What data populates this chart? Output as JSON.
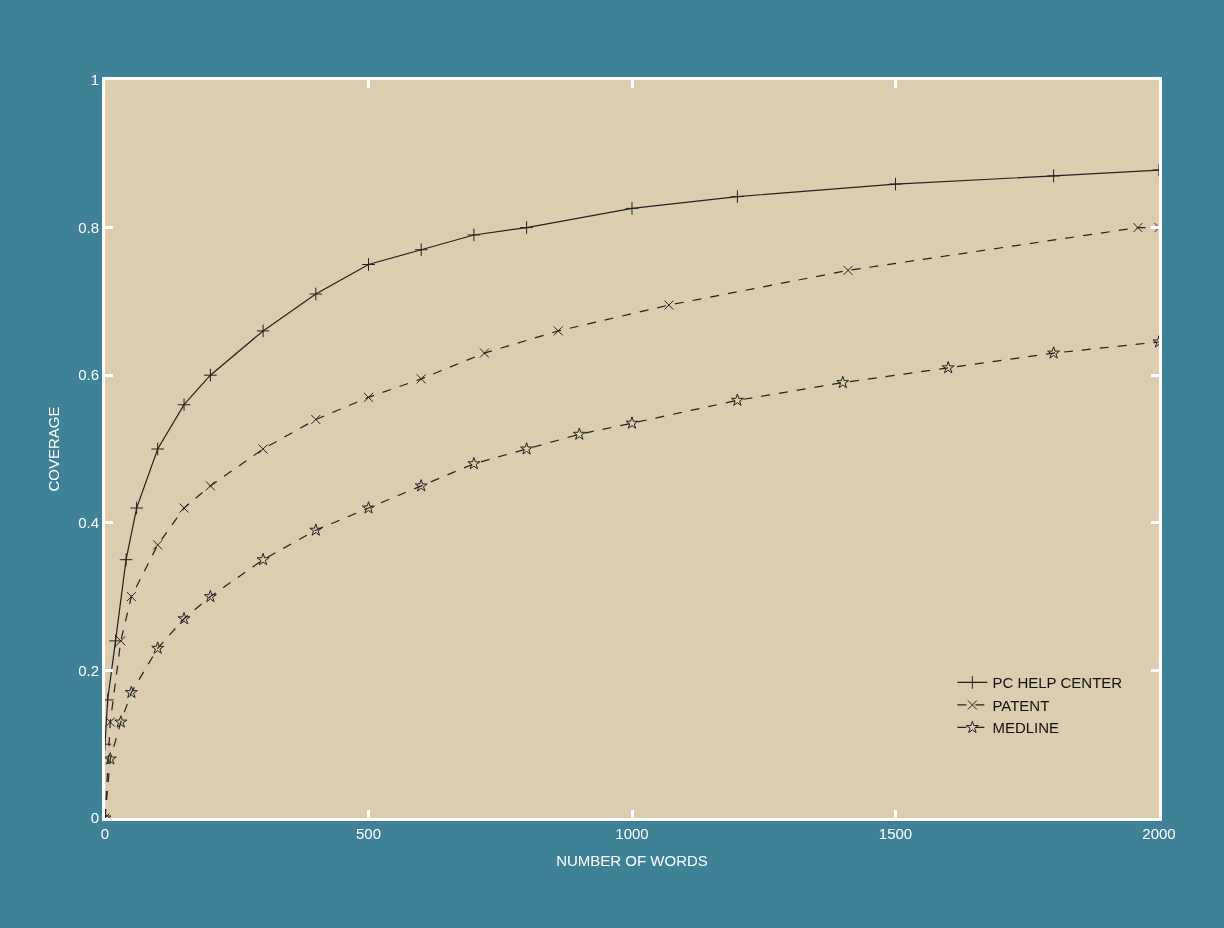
{
  "chart_data": {
    "type": "line",
    "xlabel": "NUMBER OF WORDS",
    "ylabel": "COVERAGE",
    "xlim": [
      0,
      2000
    ],
    "xticks": [
      0,
      500,
      1000,
      1500,
      2000
    ],
    "ylim": [
      0,
      1
    ],
    "yticks": [
      0,
      0.2,
      0.4,
      0.6,
      0.8,
      1
    ],
    "grid": false,
    "legend": "bottom right",
    "series": [
      {
        "name": "PC HELP CENTER",
        "color": "#222222",
        "line_style": "solid",
        "marker": "cross",
        "x": [
          0,
          5,
          20,
          40,
          60,
          100,
          150,
          200,
          300,
          400,
          500,
          600,
          700,
          800,
          1000,
          1200,
          1500,
          1800,
          2000
        ],
        "values": [
          0.1,
          0.16,
          0.24,
          0.35,
          0.42,
          0.5,
          0.56,
          0.6,
          0.66,
          0.71,
          0.75,
          0.77,
          0.79,
          0.8,
          0.826,
          0.842,
          0.859,
          0.87,
          0.878
        ]
      },
      {
        "name": "PATENT",
        "color": "#222222",
        "line_style": "dashed",
        "marker": "x",
        "x": [
          0,
          10,
          30,
          50,
          100,
          150,
          200,
          300,
          400,
          500,
          600,
          720,
          860,
          1070,
          1410,
          1960,
          2000
        ],
        "values": [
          0,
          0.13,
          0.24,
          0.3,
          0.37,
          0.42,
          0.45,
          0.5,
          0.54,
          0.57,
          0.595,
          0.63,
          0.66,
          0.695,
          0.742,
          0.8,
          0.8
        ]
      },
      {
        "name": "MEDLINE",
        "color": "#222222",
        "line_style": "dashed",
        "marker": "star",
        "x": [
          0,
          10,
          30,
          50,
          100,
          150,
          200,
          300,
          400,
          500,
          600,
          700,
          800,
          900,
          1000,
          1200,
          1400,
          1600,
          1800,
          2000
        ],
        "values": [
          0,
          0.08,
          0.13,
          0.17,
          0.23,
          0.27,
          0.3,
          0.35,
          0.39,
          0.42,
          0.45,
          0.48,
          0.5,
          0.52,
          0.535,
          0.566,
          0.59,
          0.61,
          0.63,
          0.645
        ]
      }
    ]
  }
}
